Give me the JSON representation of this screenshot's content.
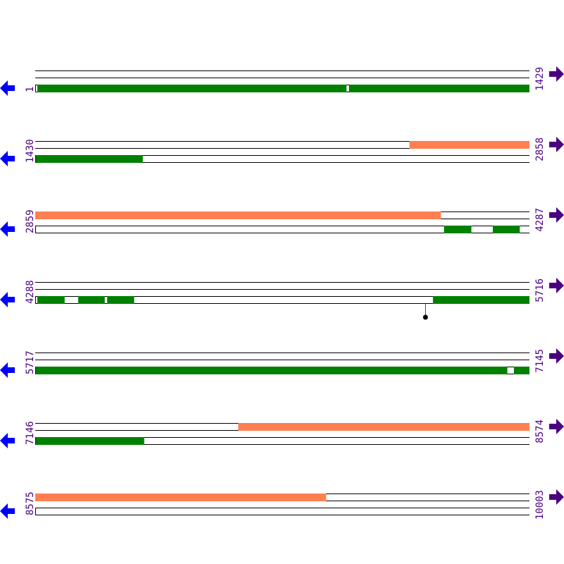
{
  "colors": {
    "forward_feature": "#ff7f50",
    "reverse_feature": "#008000",
    "line": "#000000",
    "left_arrow": "#0000ff",
    "right_arrow": "#4b0082",
    "label": "#4b0082",
    "marker_stem": "#ff0000",
    "marker_dot": "#000000"
  },
  "icons": {
    "left": "arrow-left-icon",
    "right": "arrow-right-icon"
  },
  "bases_per_row": 1429,
  "rows": [
    {
      "start": "1",
      "end": "1429",
      "top": [],
      "bottom": [
        [
          7,
          900
        ],
        [
          908,
          1429
        ]
      ]
    },
    {
      "start": "1430",
      "end": "2858",
      "top": [
        [
          2512,
          2858
        ]
      ],
      "bottom": [
        [
          1430,
          1740
        ]
      ]
    },
    {
      "start": "2859",
      "end": "4287",
      "top": [
        [
          2859,
          4031
        ]
      ],
      "bottom": [
        [
          4041,
          4119
        ],
        [
          4182,
          4259
        ]
      ]
    },
    {
      "start": "4288",
      "end": "5716",
      "top": [],
      "bottom": [
        [
          4294,
          4372
        ],
        [
          4412,
          4488
        ],
        [
          4496,
          4573
        ],
        [
          5438,
          5716
        ]
      ],
      "markers": [
        5415
      ]
    },
    {
      "start": "5717",
      "end": "7145",
      "top": [],
      "bottom": [
        [
          5717,
          7081
        ],
        [
          7101,
          7145
        ]
      ]
    },
    {
      "start": "7146",
      "end": "8574",
      "top": [
        [
          7733,
          8574
        ]
      ],
      "bottom": [
        [
          7146,
          7460
        ]
      ]
    },
    {
      "start": "8575",
      "end": "10003",
      "top": [
        [
          8575,
          9415
        ]
      ],
      "bottom": []
    }
  ]
}
